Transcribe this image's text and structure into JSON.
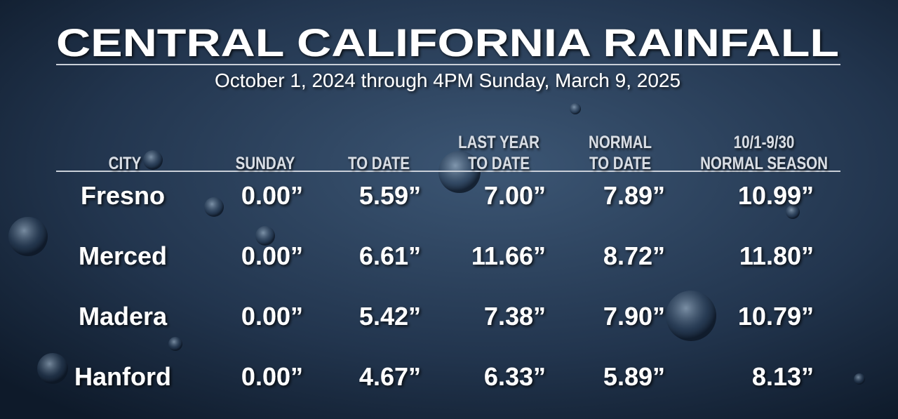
{
  "header": {
    "title": "CENTRAL CALIFORNIA RAINFALL",
    "subtitle": "October 1, 2024 through 4PM Sunday, March 9, 2025"
  },
  "table": {
    "columns": [
      [
        "CITY"
      ],
      [
        "SUNDAY"
      ],
      [
        "TO DATE"
      ],
      [
        "LAST YEAR",
        "TO DATE"
      ],
      [
        "NORMAL",
        "TO DATE"
      ],
      [
        "10/1-9/30",
        "NORMAL SEASON"
      ]
    ],
    "rows": [
      [
        "Fresno",
        "0.00”",
        "5.59”",
        "7.00”",
        "7.89”",
        "10.99”"
      ],
      [
        "Merced",
        "0.00”",
        "6.61”",
        "11.66”",
        "8.72”",
        "11.80”"
      ],
      [
        "Madera",
        "0.00”",
        "5.42”",
        "7.38”",
        "7.90”",
        "10.79”"
      ],
      [
        "Hanford",
        "0.00”",
        "4.67”",
        "6.33”",
        "5.89”",
        "8.13”"
      ]
    ]
  }
}
